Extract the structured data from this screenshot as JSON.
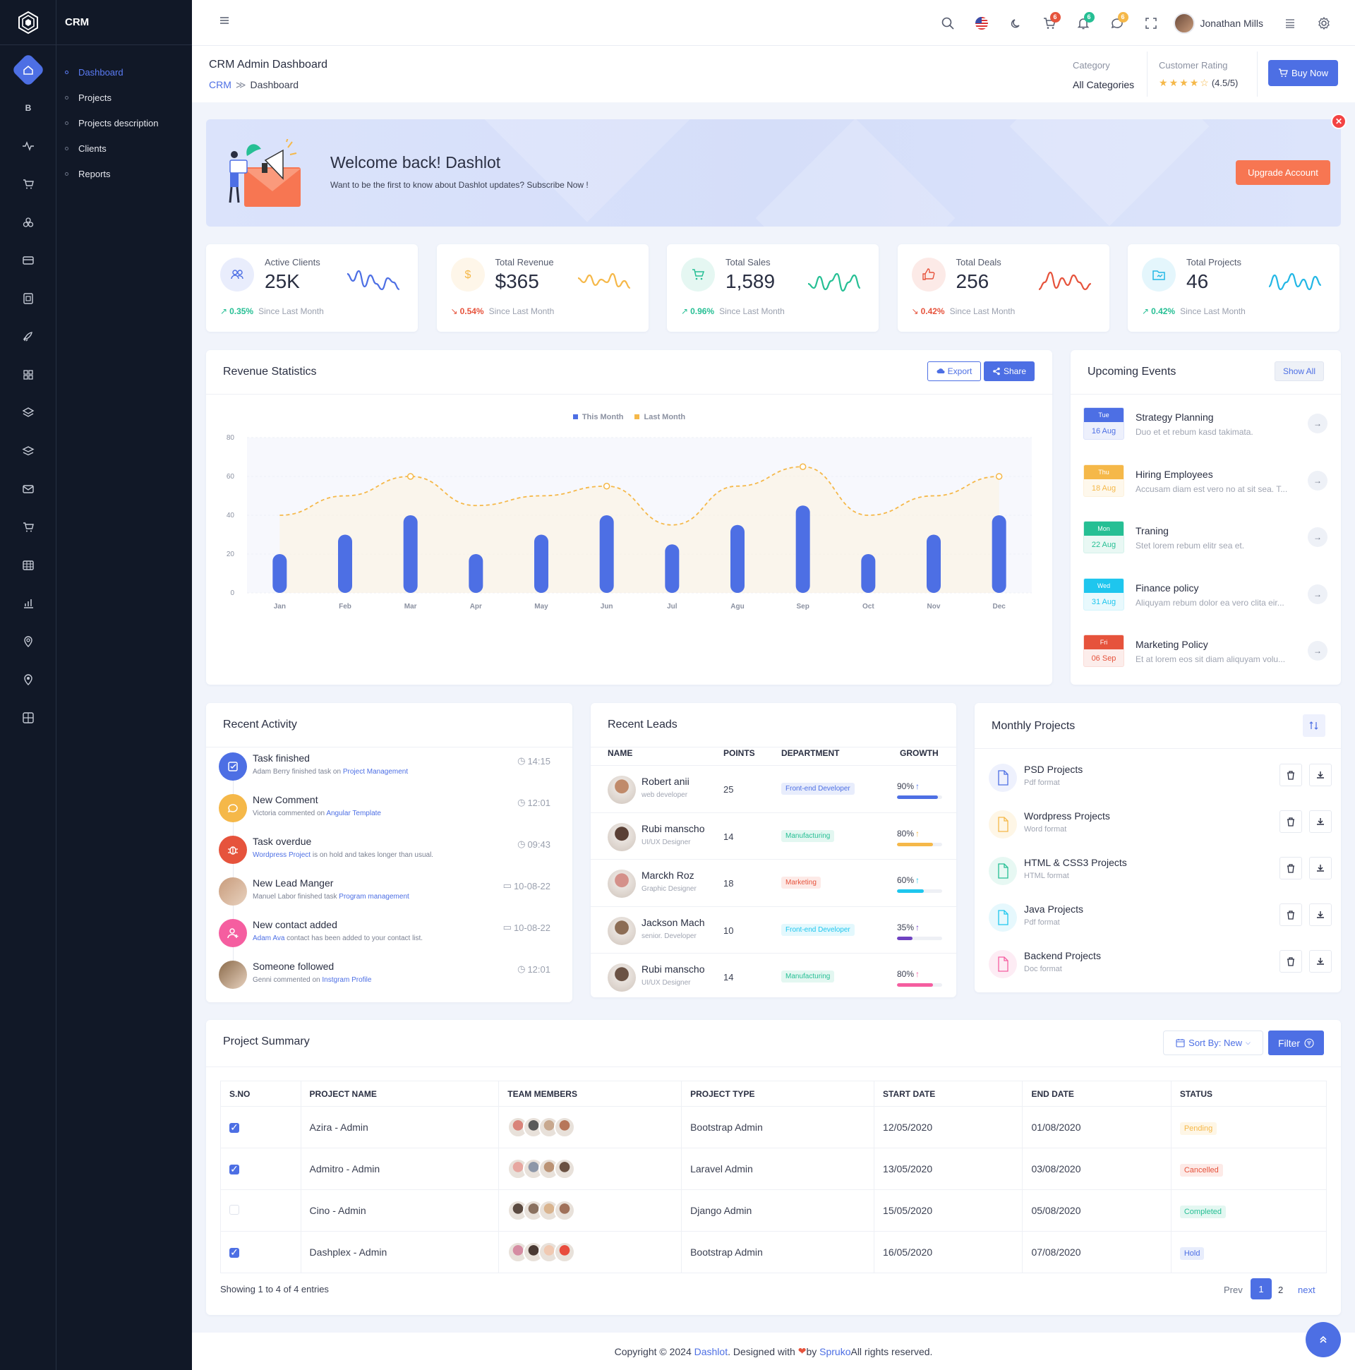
{
  "app": {
    "section": "CRM"
  },
  "subnav": [
    "Dashboard",
    "Projects",
    "Projects description",
    "Clients",
    "Reports"
  ],
  "rail_icons": [
    "home-icon",
    "bitcoin-icon",
    "activity-icon",
    "cart-icon",
    "apps-icon",
    "card-icon",
    "file-icon",
    "rocket-icon",
    "grid-icon",
    "layers-icon",
    "stack-icon",
    "mail-icon",
    "shop-icon",
    "table-icon",
    "chart-icon",
    "map-pin-icon",
    "location-icon",
    "widget-icon"
  ],
  "topbar": {
    "user": "Jonathan Mills",
    "cart_count": "6",
    "notif_count": "6",
    "msg_count": "6"
  },
  "header": {
    "title": "CRM Admin Dashboard",
    "crumb_root": "CRM",
    "crumb_sep": "≫",
    "crumb_current": "Dashboard",
    "category_label": "Category",
    "category_value": "All Categories",
    "rating_label": "Customer Rating",
    "rating_value": "(4.5/5)",
    "rating": 4.5,
    "buy_label": "Buy Now"
  },
  "welcome": {
    "title": "Welcome back! Dashlot",
    "text": "Want to be the first to know about Dashlot updates? Subscribe Now !",
    "button": "Upgrade Account"
  },
  "stats": [
    {
      "label": "Active Clients",
      "value": "25K",
      "pct": "0.35%",
      "trend": "up",
      "since": "Since Last Month",
      "color": "#4d6fe4"
    },
    {
      "label": "Total Revenue",
      "value": "$365",
      "pct": "0.54%",
      "trend": "down",
      "since": "Since Last Month",
      "color": "#f5b849"
    },
    {
      "label": "Total Sales",
      "value": "1,589",
      "pct": "0.96%",
      "trend": "up",
      "since": "Since Last Month",
      "color": "#26bf94"
    },
    {
      "label": "Total Deals",
      "value": "256",
      "pct": "0.42%",
      "trend": "down",
      "since": "Since Last Month",
      "color": "#e6533c"
    },
    {
      "label": "Total Projects",
      "value": "46",
      "pct": "0.42%",
      "trend": "up",
      "since": "Since Last Month",
      "color": "#23b7e5"
    }
  ],
  "revenue": {
    "title": "Revenue Statistics",
    "export": "Export",
    "share": "Share"
  },
  "chart_data": {
    "type": "bar",
    "categories": [
      "Jan",
      "Feb",
      "Mar",
      "Apr",
      "May",
      "Jun",
      "Jul",
      "Agu",
      "Sep",
      "Oct",
      "Nov",
      "Dec"
    ],
    "series": [
      {
        "name": "This Month",
        "type": "bar",
        "color": "#4d6fe4",
        "values": [
          20,
          30,
          40,
          20,
          30,
          40,
          25,
          35,
          45,
          20,
          30,
          40
        ]
      },
      {
        "name": "Last Month",
        "type": "line",
        "color": "#f5b849",
        "values": [
          40,
          50,
          60,
          45,
          50,
          55,
          35,
          55,
          65,
          40,
          50,
          60
        ]
      }
    ],
    "ylim": [
      0,
      80
    ],
    "yticks": [
      0,
      20,
      40,
      60,
      80
    ]
  },
  "events": {
    "title": "Upcoming Events",
    "show_all": "Show All",
    "items": [
      {
        "day": "Tue",
        "date": "16 Aug",
        "name": "Strategy Planning",
        "desc": "Duo et et rebum kasd takimata.",
        "color": "#4d6fe4"
      },
      {
        "day": "Thu",
        "date": "18 Aug",
        "name": "Hiring Employees",
        "desc": "Accusam diam est vero no at sit sea. T...",
        "color": "#f5b849"
      },
      {
        "day": "Mon",
        "date": "22 Aug",
        "name": "Traning",
        "desc": "Stet lorem rebum elitr sea et.",
        "color": "#26bf94"
      },
      {
        "day": "Wed",
        "date": "31 Aug",
        "name": "Finance policy",
        "desc": "Aliquyam rebum dolor ea vero clita eir...",
        "color": "#1ec6ee"
      },
      {
        "day": "Fri",
        "date": "06 Sep",
        "name": "Marketing Policy",
        "desc": "Et at lorem eos sit diam aliquyam volu...",
        "color": "#e6533c"
      }
    ]
  },
  "activity": {
    "title": "Recent Activity",
    "items": [
      {
        "name": "Task finished",
        "pre": "Adam Berry finished task on ",
        "link": "Project Management",
        "post": "",
        "time": "14:15",
        "icon": "check-icon",
        "color": "#4d6fe4"
      },
      {
        "name": "New Comment",
        "pre": "Victoria commented on ",
        "link": "Angular Template",
        "post": "",
        "time": "12:01",
        "icon": "chat-icon",
        "color": "#f5b849"
      },
      {
        "name": "Task overdue",
        "pre": "",
        "link": "Wordpress Project",
        "post": " is on hold and takes longer than usual.",
        "time": "09:43",
        "icon": "bug-icon",
        "color": "#e6533c"
      },
      {
        "name": "New Lead Manger",
        "pre": "Manuel Labor finished task ",
        "link": "Program management",
        "post": "",
        "time": "10-08-22",
        "icon": "avatar",
        "color": "#c89b7b"
      },
      {
        "name": "New contact added",
        "pre": "",
        "link": "Adam Ava",
        "post": " contact has been added to your contact list.",
        "time": "10-08-22",
        "icon": "user-plus-icon",
        "color": "#f55ea0"
      },
      {
        "name": "Someone followed",
        "pre": "Genni commented on ",
        "link": "Instgram Profile",
        "post": "",
        "time": "12:01",
        "icon": "avatar",
        "color": "#8a6a4a"
      }
    ]
  },
  "leads": {
    "title": "Recent Leads",
    "headers": [
      "NAME",
      "POINTS",
      "DEPARTMENT",
      "GROWTH"
    ],
    "rows": [
      {
        "name": "Robert anii",
        "role": "web developer",
        "points": "25",
        "dept": "Front-end Developer",
        "growth": "90%",
        "pct": 0.9,
        "color": "#4d6fe4",
        "dcolor": "#4d6fe4",
        "dbg": "#e8edfc"
      },
      {
        "name": "Rubi manscho",
        "role": "UI/UX Designer",
        "points": "14",
        "dept": "Manufacturing",
        "growth": "80%",
        "pct": 0.8,
        "color": "#f5b849",
        "dcolor": "#26bf94",
        "dbg": "#e3f7f1"
      },
      {
        "name": "Marckh Roz",
        "role": "Graphic Designer",
        "points": "18",
        "dept": "Marketing",
        "growth": "60%",
        "pct": 0.6,
        "color": "#1ec6ee",
        "dcolor": "#e6533c",
        "dbg": "#fdeae7"
      },
      {
        "name": "Jackson Mach",
        "role": "senior. Developer",
        "points": "10",
        "dept": "Front-end Developer",
        "growth": "35%",
        "pct": 0.35,
        "color": "#6f42c1",
        "dcolor": "#1ec6ee",
        "dbg": "#e3f8fd"
      },
      {
        "name": "Rubi manscho",
        "role": "UI/UX Designer",
        "points": "14",
        "dept": "Manufacturing",
        "growth": "80%",
        "pct": 0.8,
        "color": "#f55ea0",
        "dcolor": "#26bf94",
        "dbg": "#e3f7f1"
      }
    ]
  },
  "monthly": {
    "title": "Monthly Projects",
    "items": [
      {
        "name": "PSD Projects",
        "format": "Pdf format",
        "tag": "PSD",
        "color": "#4d6fe4",
        "bg": "#eef1fd"
      },
      {
        "name": "Wordpress Projects",
        "format": "Word format",
        "tag": "WP",
        "color": "#f5b849",
        "bg": "#fef6e6"
      },
      {
        "name": "HTML & CSS3 Projects",
        "format": "HTML format",
        "tag": "HTML",
        "color": "#26bf94",
        "bg": "#e7f8f3"
      },
      {
        "name": "Java Projects",
        "format": "Pdf format",
        "tag": "JAVA",
        "color": "#1ec6ee",
        "bg": "#e6f8fd"
      },
      {
        "name": "Backend Projects",
        "format": "Doc format",
        "tag": "DOC",
        "color": "#f55ea0",
        "bg": "#fdecf4"
      }
    ]
  },
  "summary": {
    "title": "Project Summary",
    "sort": "Sort By: New",
    "filter": "Filter",
    "headers": [
      "S.NO",
      "PROJECT NAME",
      "TEAM MEMBERS",
      "PROJECT TYPE",
      "START DATE",
      "END DATE",
      "STATUS"
    ],
    "rows": [
      {
        "checked": true,
        "name": "Azira - Admin",
        "type": "Bootstrap Admin",
        "start": "12/05/2020",
        "end": "01/08/2020",
        "status": "Pending",
        "scolor": "#f5b849",
        "sbg": "#fef6e6"
      },
      {
        "checked": true,
        "name": "Admitro - Admin",
        "type": "Laravel Admin",
        "start": "13/05/2020",
        "end": "03/08/2020",
        "status": "Cancelled",
        "scolor": "#e6533c",
        "sbg": "#fdeae7"
      },
      {
        "checked": false,
        "name": "Cino - Admin",
        "type": "Django Admin",
        "start": "15/05/2020",
        "end": "05/08/2020",
        "status": "Completed",
        "scolor": "#26bf94",
        "sbg": "#e3f7f1"
      },
      {
        "checked": true,
        "name": "Dashplex - Admin",
        "type": "Bootstrap Admin",
        "start": "16/05/2020",
        "end": "07/08/2020",
        "status": "Hold",
        "scolor": "#4d6fe4",
        "sbg": "#e8edfc"
      }
    ],
    "showing": "Showing 1 to 4 of 4 entries",
    "prev": "Prev",
    "page1": "1",
    "page2": "2",
    "next": "next"
  },
  "footer": {
    "pre": "Copyright © 2024 ",
    "brand": "Dashlot",
    "mid": ". Designed with ",
    "by": " by ",
    "author": "Spruko",
    "post": " All rights reserved."
  }
}
